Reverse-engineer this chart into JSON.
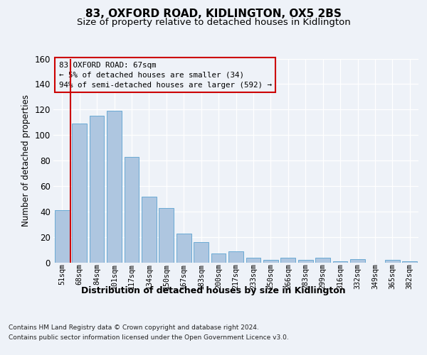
{
  "title": "83, OXFORD ROAD, KIDLINGTON, OX5 2BS",
  "subtitle": "Size of property relative to detached houses in Kidlington",
  "xlabel": "Distribution of detached houses by size in Kidlington",
  "ylabel": "Number of detached properties",
  "categories": [
    "51sqm",
    "68sqm",
    "84sqm",
    "101sqm",
    "117sqm",
    "134sqm",
    "150sqm",
    "167sqm",
    "183sqm",
    "200sqm",
    "217sqm",
    "233sqm",
    "250sqm",
    "266sqm",
    "283sqm",
    "299sqm",
    "316sqm",
    "332sqm",
    "349sqm",
    "365sqm",
    "382sqm"
  ],
  "values": [
    41,
    109,
    115,
    119,
    83,
    52,
    43,
    23,
    16,
    7,
    9,
    4,
    2,
    4,
    2,
    4,
    1,
    3,
    0,
    2,
    1
  ],
  "bar_color": "#aec6e0",
  "bar_edge_color": "#6aaad4",
  "ylim": [
    0,
    160
  ],
  "yticks": [
    0,
    20,
    40,
    60,
    80,
    100,
    120,
    140,
    160
  ],
  "annotation_title": "83 OXFORD ROAD: 67sqm",
  "annotation_line1": "← 5% of detached houses are smaller (34)",
  "annotation_line2": "94% of semi-detached houses are larger (592) →",
  "footer_line1": "Contains HM Land Registry data © Crown copyright and database right 2024.",
  "footer_line2": "Contains public sector information licensed under the Open Government Licence v3.0.",
  "background_color": "#eef2f8",
  "grid_color": "#ffffff",
  "annotation_box_color": "#cc0000",
  "vline_color": "#cc0000",
  "vline_x": 0.5
}
